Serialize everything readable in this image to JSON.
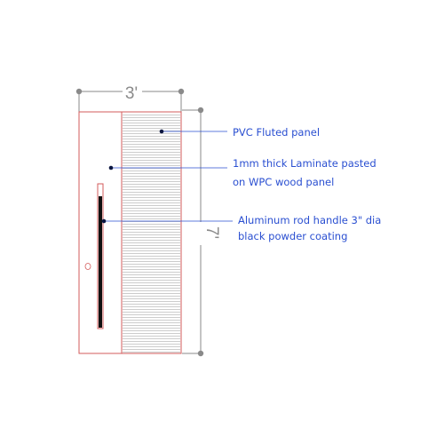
{
  "dimensions": {
    "width_label": "3'",
    "height_label": "7'"
  },
  "callouts": [
    {
      "lines": [
        "PVC Fluted panel"
      ]
    },
    {
      "lines": [
        "1mm thick Laminate pasted",
        "on WPC wood panel"
      ]
    },
    {
      "lines": [
        "Aluminum rod handle 3\" dia",
        "black powder coating"
      ]
    }
  ],
  "colors": {
    "outline": "#d35b5b",
    "dimension": "#8a8a8a",
    "leader": "#2a4fd1",
    "flute": "#9a9a9a",
    "handle": "#111111"
  }
}
